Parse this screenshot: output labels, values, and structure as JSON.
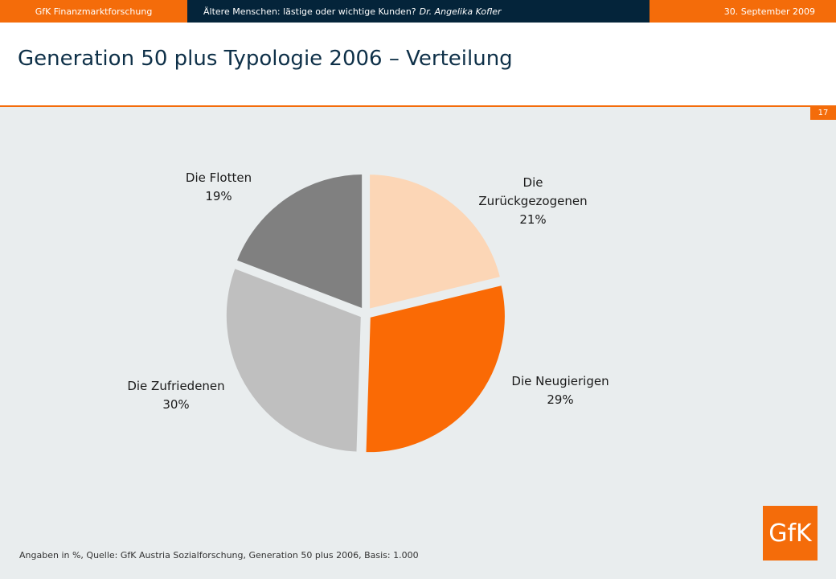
{
  "header": {
    "left": "GfK Finanzmarktforschung",
    "middle": "Ältere Menschen: lästige oder wichtige Kunden?",
    "author": "Dr. Angelika Kofler",
    "date": "30. September 2009"
  },
  "title": "Generation 50 plus Typologie 2006 – Verteilung",
  "page_number": "17",
  "footnote": "Angaben in %, Quelle: GfK Austria Sozialforschung, Generation 50 plus 2006, Basis: 1.000",
  "logo": "GfK",
  "colors": {
    "accent": "#f46c0a",
    "navy": "#04243a",
    "slice_zurueckgezogenen": "#fcd6b6",
    "slice_neugierigen": "#fa6a05",
    "slice_zufriedenen": "#bfbfbf",
    "slice_flotten": "#808080"
  },
  "chart_data": {
    "type": "pie",
    "title": "",
    "slices": [
      {
        "label_lines": [
          "Die",
          "Zurückgezogenen"
        ],
        "value": 21,
        "value_label": "21%",
        "color": "#fcd6b6"
      },
      {
        "label_lines": [
          "Die Neugierigen"
        ],
        "value": 29,
        "value_label": "29%",
        "color": "#fa6a05"
      },
      {
        "label_lines": [
          "Die Zufriedenen"
        ],
        "value": 30,
        "value_label": "30%",
        "color": "#bfbfbf"
      },
      {
        "label_lines": [
          "Die Flotten"
        ],
        "value": 19,
        "value_label": "19%",
        "color": "#808080"
      }
    ],
    "start": "12 o'clock",
    "direction": "clockwise",
    "exploded": true
  }
}
